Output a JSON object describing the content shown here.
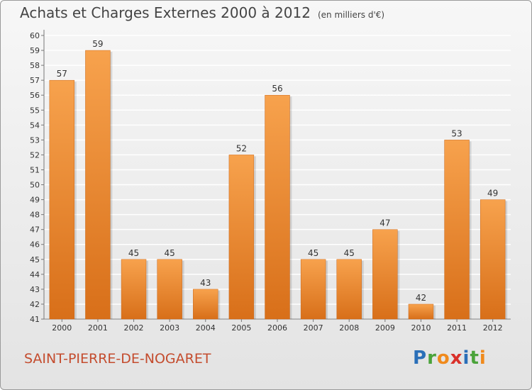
{
  "title": "Achats et Charges Externes 2000 à 2012",
  "subtitle": "(en milliers d'€)",
  "place": "SAINT-PIERRE-DE-NOGARET",
  "logo": {
    "text": "Proxiti",
    "colors": [
      "#2a6fb8",
      "#4aa33a",
      "#f08a1c",
      "#d9302a",
      "#2a6fb8",
      "#4aa33a",
      "#f08a1c"
    ]
  },
  "colors": {
    "bar_top": "#f7a24d",
    "bar_bottom": "#d86f19",
    "grid": "#ffffff",
    "axis": "#777777",
    "title": "#444444",
    "place": "#c44c2e"
  },
  "chart_data": {
    "type": "bar",
    "categories": [
      "2000",
      "2001",
      "2002",
      "2003",
      "2004",
      "2005",
      "2006",
      "2007",
      "2008",
      "2009",
      "2010",
      "2011",
      "2012"
    ],
    "values": [
      57,
      59,
      45,
      45,
      43,
      52,
      56,
      45,
      45,
      47,
      42,
      53,
      49
    ],
    "ylim": [
      41,
      60
    ],
    "yticks": [
      41,
      42,
      43,
      44,
      45,
      46,
      47,
      48,
      49,
      50,
      51,
      52,
      53,
      54,
      55,
      56,
      57,
      58,
      59,
      60
    ],
    "grid": true,
    "data_labels": true
  }
}
